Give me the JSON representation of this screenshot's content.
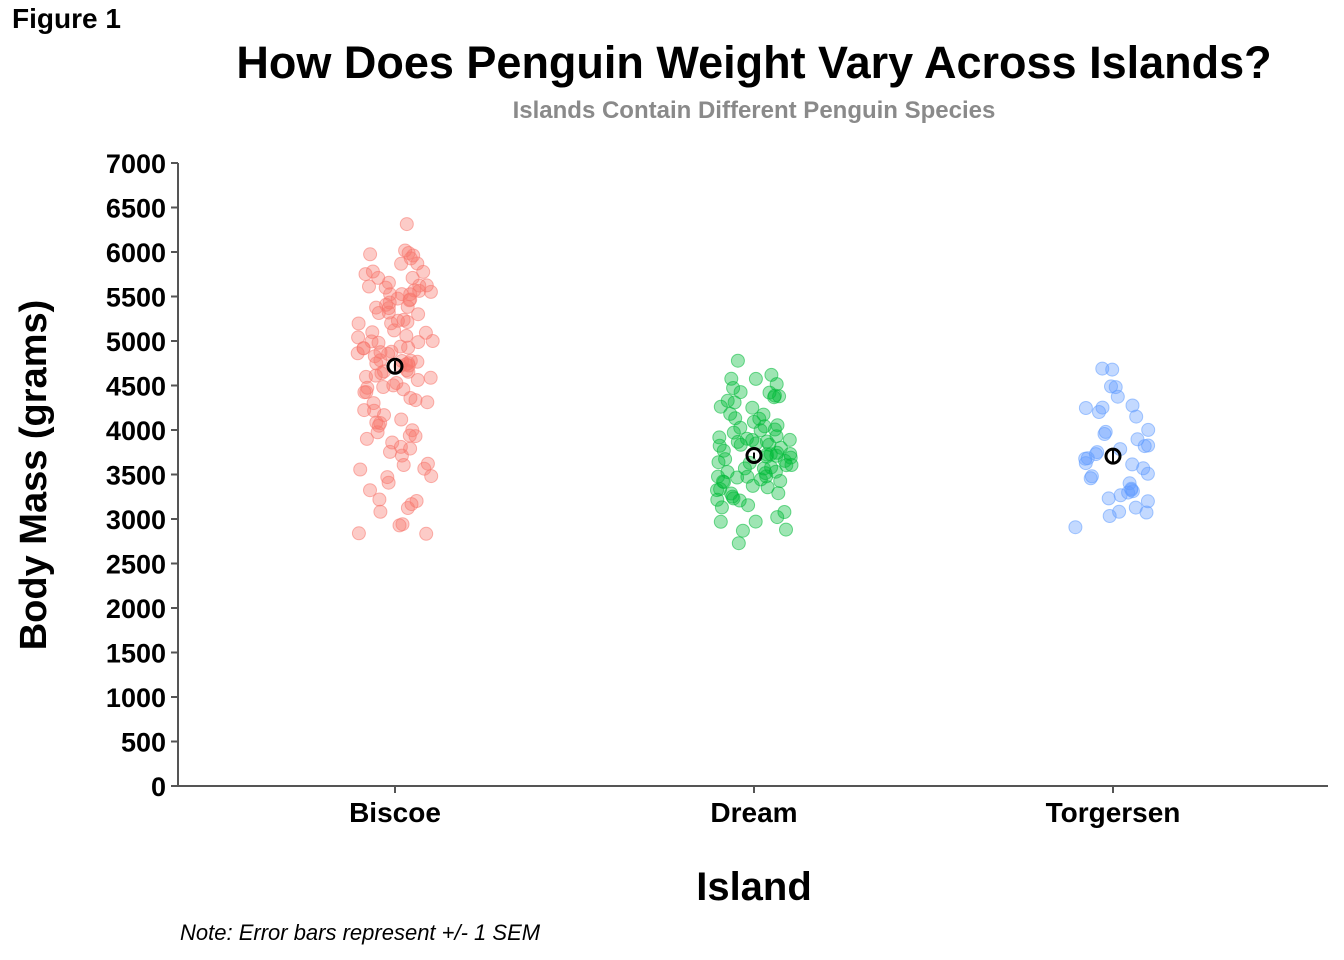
{
  "figure_label": "Figure 1",
  "note": "Note: Error bars represent +/- 1 SEM",
  "chart_data": {
    "type": "scatter",
    "title": "How Does Penguin Weight Vary Across Islands?",
    "subtitle": "Islands Contain Different Penguin Species",
    "xlabel": "Island",
    "ylabel": "Body Mass (grams)",
    "ylim": [
      0,
      7000
    ],
    "yticks": [
      0,
      500,
      1000,
      1500,
      2000,
      2500,
      3000,
      3500,
      4000,
      4500,
      5000,
      5500,
      6000,
      6500,
      7000
    ],
    "categories": [
      "Biscoe",
      "Dream",
      "Torgersen"
    ],
    "grid": false,
    "legend": "none",
    "series": [
      {
        "category": "Biscoe",
        "color": "#F8766D",
        "mean": 4716,
        "sem": 59,
        "values": [
          6300,
          6050,
          6000,
          6000,
          5950,
          5950,
          5850,
          5850,
          5800,
          5800,
          5750,
          5700,
          5700,
          5650,
          5650,
          5600,
          5600,
          5600,
          5550,
          5550,
          5550,
          5550,
          5500,
          5500,
          5500,
          5450,
          5450,
          5400,
          5400,
          5400,
          5350,
          5350,
          5300,
          5300,
          5300,
          5250,
          5250,
          5200,
          5200,
          5200,
          5150,
          5100,
          5100,
          5050,
          5050,
          5000,
          5000,
          5000,
          5000,
          4950,
          4950,
          4950,
          4900,
          4900,
          4900,
          4850,
          4850,
          4850,
          4800,
          4800,
          4800,
          4750,
          4750,
          4750,
          4750,
          4700,
          4700,
          4700,
          4650,
          4650,
          4650,
          4600,
          4600,
          4600,
          4550,
          4550,
          4500,
          4500,
          4450,
          4450,
          4400,
          4400,
          4350,
          4350,
          4300,
          4300,
          4250,
          4200,
          4200,
          4150,
          4100,
          4100,
          4050,
          4000,
          3950,
          3950,
          3900,
          3900,
          3850,
          3800,
          3800,
          3750,
          3700,
          3650,
          3600,
          3550,
          3550,
          3500,
          3450,
          3400,
          3350,
          3250,
          3200,
          3200,
          3150,
          3100,
          2950,
          2900,
          2850,
          2850
        ]
      },
      {
        "category": "Dream",
        "color": "#00BA38",
        "mean": 3713,
        "sem": 34,
        "values": [
          4800,
          4650,
          4600,
          4550,
          4500,
          4500,
          4450,
          4400,
          4400,
          4400,
          4350,
          4300,
          4300,
          4250,
          4250,
          4200,
          4150,
          4150,
          4100,
          4100,
          4050,
          4050,
          4000,
          4000,
          4000,
          3950,
          3950,
          3950,
          3900,
          3900,
          3900,
          3900,
          3850,
          3850,
          3850,
          3800,
          3800,
          3800,
          3800,
          3750,
          3750,
          3750,
          3700,
          3700,
          3700,
          3700,
          3650,
          3650,
          3650,
          3600,
          3600,
          3600,
          3600,
          3550,
          3550,
          3550,
          3500,
          3500,
          3500,
          3500,
          3450,
          3450,
          3450,
          3400,
          3400,
          3400,
          3400,
          3350,
          3350,
          3300,
          3300,
          3300,
          3250,
          3250,
          3200,
          3200,
          3150,
          3100,
          3050,
          3000,
          3000,
          2950,
          2900,
          2900,
          2700
        ]
      },
      {
        "category": "Torgersen",
        "color": "#619CFF",
        "mean": 3706,
        "sem": 70,
        "values": [
          4700,
          4675,
          4500,
          4450,
          4400,
          4300,
          4250,
          4250,
          4200,
          4150,
          4000,
          4000,
          3950,
          3900,
          3850,
          3800,
          3800,
          3750,
          3700,
          3700,
          3650,
          3650,
          3600,
          3550,
          3500,
          3475,
          3450,
          3400,
          3350,
          3325,
          3300,
          3300,
          3250,
          3200,
          3200,
          3150,
          3050,
          3050,
          3050,
          2900
        ]
      }
    ]
  }
}
